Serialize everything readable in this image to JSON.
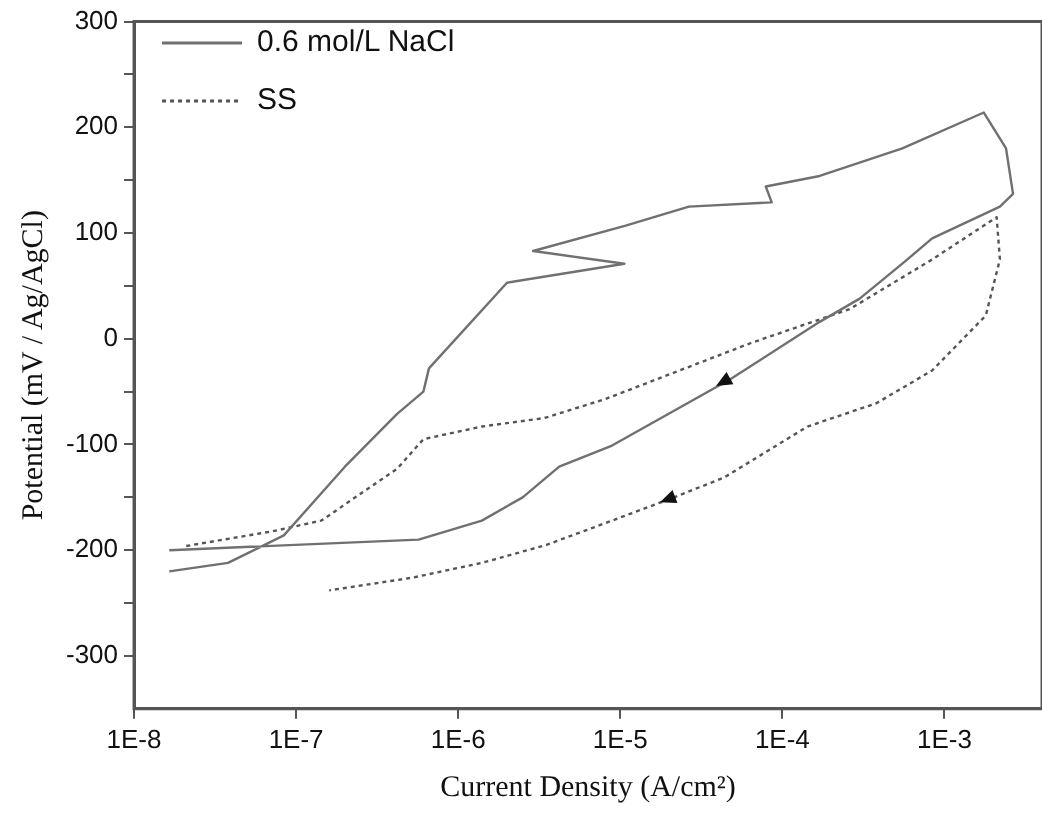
{
  "chart_data": {
    "type": "line",
    "xlabel": "Current Density (A/cm²)",
    "ylabel": "Potential (mV / Ag/AgCl)",
    "log": "x",
    "xlim": [
      1e-08,
      0.004
    ],
    "xticks": [
      {
        "value": 1e-08,
        "label": "1E-8"
      },
      {
        "value": 1e-07,
        "label": "1E-7"
      },
      {
        "value": 1e-06,
        "label": "1E-6"
      },
      {
        "value": 1e-05,
        "label": "1E-5"
      },
      {
        "value": 0.0001,
        "label": "1E-4"
      },
      {
        "value": 0.001,
        "label": "1E-3"
      }
    ],
    "ylim": [
      -350,
      300
    ],
    "yticks": [
      -300,
      {
        "value": -250,
        "label": null
      },
      -200,
      {
        "value": -150,
        "label": null
      },
      -100,
      {
        "value": -50,
        "label": null
      },
      0,
      {
        "value": 50,
        "label": null
      },
      100,
      {
        "value": 150,
        "label": null
      },
      200,
      {
        "value": 250,
        "label": null
      },
      300
    ],
    "grid": false,
    "legend": "top left",
    "marker": "none",
    "series": [
      {
        "name": "0.6 mol/L NaCl",
        "color": "#707070",
        "line_style": "solid",
        "x": [
          1.65e-08,
          3.8e-08,
          8.4e-08,
          2e-07,
          4.2e-07,
          6.1e-07,
          6.6e-07,
          2e-06,
          1.06e-05,
          2.9e-06,
          1.08e-05,
          2.65e-05,
          8.6e-05,
          7.9e-05,
          0.00017,
          0.00055,
          0.00175,
          0.0024,
          0.00265,
          0.0022,
          0.00084,
          0.00055,
          0.0003,
          0.00017,
          4.8e-05,
          8.9e-06,
          4.2e-06,
          2.5e-06,
          1.4e-06,
          5.7e-07,
          1.65e-08
        ],
        "values": [
          -220,
          -212,
          -186,
          -121,
          -71,
          -50,
          -28,
          53,
          71,
          83,
          107,
          125,
          129,
          144,
          154,
          180,
          214,
          180,
          137,
          125,
          95,
          71,
          38,
          16,
          -38,
          -101,
          -121,
          -150,
          -172,
          -190,
          -200
        ]
      },
      {
        "name": "SS",
        "color": "#555555",
        "line_style": "dotted",
        "x": [
          2.1e-08,
          7.2e-08,
          1.43e-07,
          4.2e-07,
          6.1e-07,
          1.4e-06,
          3.4e-06,
          8.1e-06,
          6.4e-05,
          0.00026,
          0.00084,
          0.0021,
          0.0022,
          0.0018,
          0.00084,
          0.00038,
          0.000143,
          4.4e-05,
          2.15e-05,
          8.9e-06,
          3.5e-06,
          1.4e-06,
          5.2e-07,
          1.6e-07
        ],
        "values": [
          -196,
          -182,
          -172,
          -123,
          -95,
          -83,
          -75,
          -57,
          -4,
          28,
          75,
          115,
          75,
          22,
          -30,
          -61,
          -83,
          -131,
          -150,
          -172,
          -195,
          -212,
          -226,
          -238
        ]
      }
    ]
  }
}
